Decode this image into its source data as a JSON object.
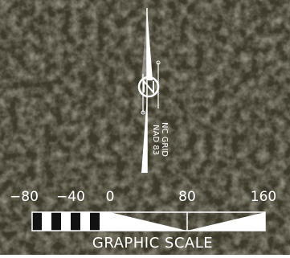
{
  "north_arrow": {
    "label_lines": [
      "NC GRID",
      "NAD 83"
    ]
  },
  "scale_bar": {
    "title": "GRAPHIC SCALE",
    "ticks": [
      "−80",
      "−40",
      "0",
      "80",
      "160"
    ]
  }
}
